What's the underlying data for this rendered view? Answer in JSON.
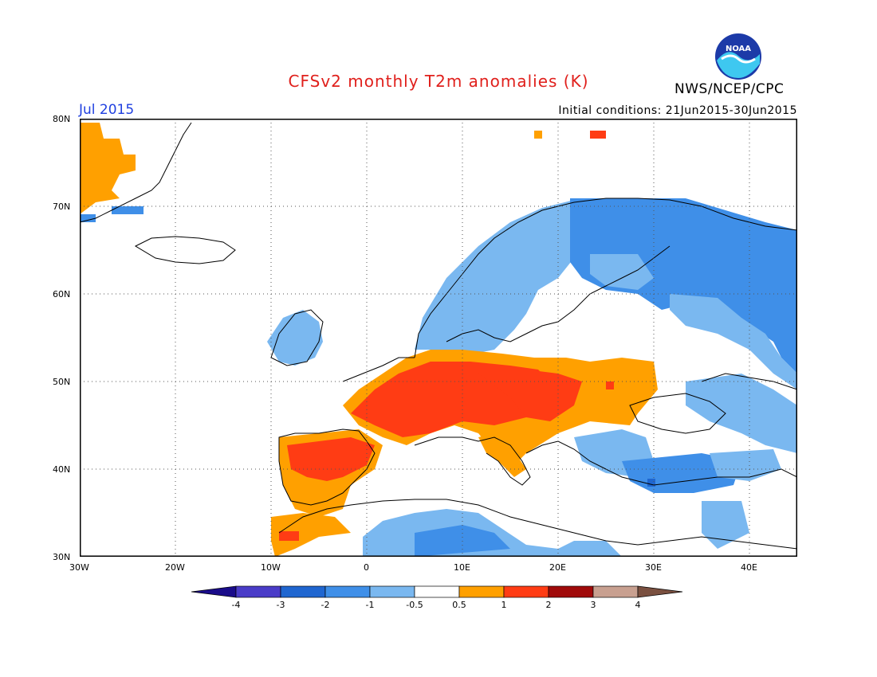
{
  "header": {
    "title": "CFSv2 monthly T2m anomalies (K)",
    "month": "Jul 2015",
    "initial_conditions": "Initial conditions: 21Jun2015-30Jun2015",
    "agency": "NWS/NCEP/CPC",
    "logo_text": "NOAA"
  },
  "map": {
    "lat_ticks": [
      "80N",
      "70N",
      "60N",
      "50N",
      "40N",
      "30N"
    ],
    "lon_ticks": [
      "30W",
      "20W",
      "10W",
      "0",
      "10E",
      "20E",
      "30E",
      "40E"
    ],
    "lon_range": [
      -30,
      45
    ],
    "lat_range": [
      30,
      80
    ],
    "grid": "dotted"
  },
  "legend": {
    "labels": [
      "-4",
      "-3",
      "-2",
      "-1",
      "-0.5",
      "0.5",
      "1",
      "2",
      "3",
      "4"
    ],
    "colors": [
      "#1a0c8a",
      "#4a3cc8",
      "#1f66d0",
      "#3f8fe8",
      "#7ab8f0",
      "#ffffff",
      "#ffa000",
      "#ff3c14",
      "#a00a0a",
      "#c8a090",
      "#7a5040"
    ]
  },
  "colors": {
    "warm1": "#ffa000",
    "warm2": "#ff3c14",
    "warm3": "#a00a0a",
    "cool1": "#7ab8f0",
    "cool2": "#3f8fe8",
    "cool3": "#1f66d0",
    "land_outline": "#000000"
  }
}
